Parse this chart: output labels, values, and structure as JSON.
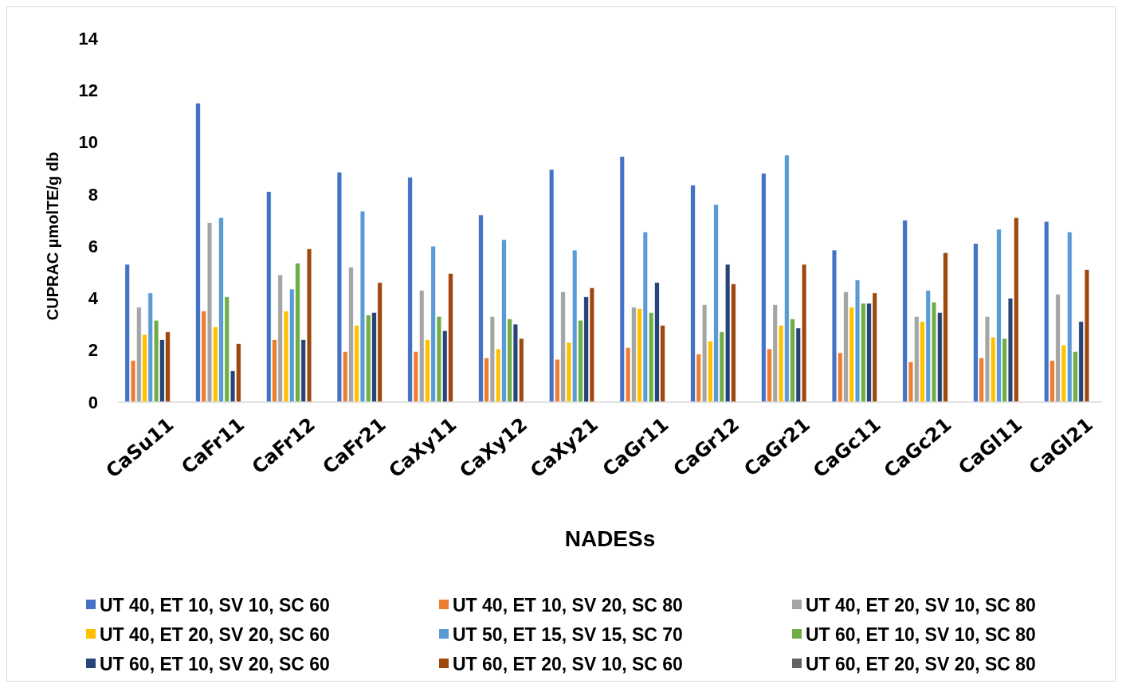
{
  "chart_data": {
    "type": "bar",
    "xlabel": "NADESs",
    "ylabel": "CUPRAC µmolTE/g db",
    "categories": [
      "CaSu11",
      "CaFr11",
      "CaFr12",
      "CaFr21",
      "CaXy11",
      "CaXy12",
      "CaXy21",
      "CaGr11",
      "CaGr12",
      "CaGr21",
      "CaGc11",
      "CaGc21",
      "CaGl11",
      "CaGl21"
    ],
    "ylim": [
      0,
      14
    ],
    "yticks": [
      0,
      2,
      4,
      6,
      8,
      10,
      12,
      14
    ],
    "grid": false,
    "legend": "bottom",
    "series": [
      {
        "name": "UT 40, ET 10, SV 10, SC 60",
        "color": "#4472c4",
        "values": [
          5.3,
          11.5,
          8.1,
          8.85,
          8.65,
          7.2,
          8.95,
          9.45,
          8.35,
          8.8,
          5.85,
          7.0,
          6.1,
          6.95
        ]
      },
      {
        "name": "UT 40, ET 10, SV 20, SC 80",
        "color": "#ed7d31",
        "values": [
          1.6,
          3.5,
          2.4,
          1.95,
          1.95,
          1.7,
          1.65,
          2.1,
          1.85,
          2.05,
          1.9,
          1.55,
          1.7,
          1.6
        ]
      },
      {
        "name": "UT 40, ET 20, SV 10, SC 80",
        "color": "#a5a5a5",
        "values": [
          3.65,
          6.9,
          4.9,
          5.2,
          4.3,
          3.3,
          4.25,
          3.65,
          3.75,
          3.75,
          4.25,
          3.3,
          3.3,
          4.15
        ]
      },
      {
        "name": "UT 40, ET 20, SV 20, SC 60",
        "color": "#ffc000",
        "values": [
          2.6,
          2.9,
          3.5,
          2.95,
          2.4,
          2.05,
          2.3,
          3.6,
          2.35,
          2.95,
          3.65,
          3.1,
          2.5,
          2.2
        ]
      },
      {
        "name": "UT 50, ET 15, SV 15, SC 70",
        "color": "#5b9bd5",
        "values": [
          4.2,
          7.1,
          4.35,
          7.35,
          6.0,
          6.25,
          5.85,
          6.55,
          7.6,
          9.5,
          4.7,
          4.3,
          6.65,
          6.55
        ]
      },
      {
        "name": "UT 60, ET 10, SV 10, SC 80",
        "color": "#70ad47",
        "values": [
          3.15,
          4.05,
          5.35,
          3.35,
          3.3,
          3.2,
          3.15,
          3.45,
          2.7,
          3.2,
          3.8,
          3.85,
          2.45,
          1.95
        ]
      },
      {
        "name": "UT 60, ET 10, SV 20, SC 60",
        "color": "#264478",
        "values": [
          2.4,
          1.2,
          2.4,
          3.45,
          2.75,
          3.0,
          4.05,
          4.6,
          5.3,
          2.85,
          3.8,
          3.45,
          4.0,
          3.1
        ]
      },
      {
        "name": "UT 60, ET 20, SV 10, SC 60",
        "color": "#9e480e",
        "values": [
          2.7,
          2.25,
          5.9,
          4.6,
          4.95,
          2.45,
          4.4,
          2.95,
          4.55,
          5.3,
          4.2,
          5.75,
          7.1,
          5.1
        ]
      },
      {
        "name": "UT 60, ET 20, SV 20, SC 80",
        "color": "#636363",
        "values": [
          null,
          null,
          null,
          null,
          null,
          null,
          null,
          null,
          null,
          null,
          null,
          null,
          null,
          null
        ]
      }
    ]
  }
}
